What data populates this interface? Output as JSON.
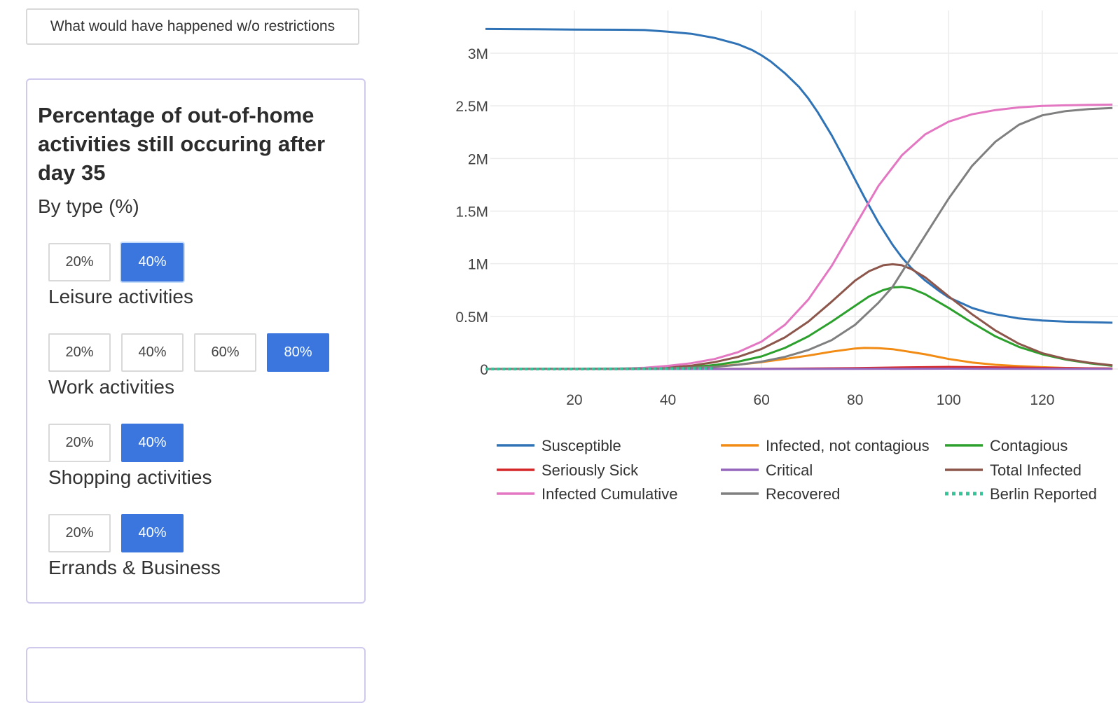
{
  "top_button": {
    "label": "What would have happened w/o restrictions"
  },
  "panel": {
    "title": "Percentage of out-of-home activities still occuring after day 35",
    "subtitle": "By type (%)",
    "groups": [
      {
        "label": "Leisure activities",
        "options": [
          "20%",
          "40%"
        ],
        "selected": "40%"
      },
      {
        "label": "Work activities",
        "options": [
          "20%",
          "40%",
          "60%",
          "80%"
        ],
        "selected": "80%"
      },
      {
        "label": "Shopping activities",
        "options": [
          "20%",
          "40%"
        ],
        "selected": "40%"
      },
      {
        "label": "Errands & Business",
        "options": [
          "20%",
          "40%"
        ],
        "selected": "40%"
      }
    ]
  },
  "chart_data": {
    "type": "line",
    "title": "",
    "xlabel": "",
    "ylabel": "",
    "xlim": [
      1,
      135
    ],
    "ylim": [
      0,
      3300000
    ],
    "x_ticks": [
      20,
      40,
      60,
      80,
      100,
      120
    ],
    "x_tick_labels": [
      "20",
      "40",
      "60",
      "80",
      "100",
      "120"
    ],
    "y_ticks": [
      0,
      500000,
      1000000,
      1500000,
      2000000,
      2500000,
      3000000
    ],
    "y_tick_labels": [
      "0",
      "0.5M",
      "1M",
      "1.5M",
      "2M",
      "2.5M",
      "3M"
    ],
    "grid": true,
    "legend_position": "bottom",
    "series": [
      {
        "name": "Susceptible",
        "color": "#2f73b6",
        "dash": "solid",
        "x": [
          1,
          10,
          20,
          30,
          35,
          40,
          45,
          50,
          55,
          58,
          60,
          62,
          65,
          68,
          70,
          72,
          75,
          78,
          80,
          82,
          85,
          88,
          90,
          92,
          95,
          98,
          100,
          103,
          105,
          108,
          110,
          115,
          120,
          125,
          130,
          135
        ],
        "y": [
          3230000,
          3228000,
          3225000,
          3223000,
          3220000,
          3205000,
          3185000,
          3145000,
          3085000,
          3030000,
          2980000,
          2920000,
          2810000,
          2680000,
          2570000,
          2440000,
          2220000,
          1970000,
          1800000,
          1630000,
          1390000,
          1180000,
          1060000,
          960000,
          840000,
          740000,
          680000,
          620000,
          580000,
          540000,
          520000,
          480000,
          460000,
          450000,
          445000,
          440000
        ]
      },
      {
        "name": "Infected, not contagious",
        "color": "#f28b13",
        "dash": "solid",
        "x": [
          1,
          30,
          40,
          45,
          50,
          55,
          60,
          65,
          70,
          75,
          80,
          82,
          85,
          88,
          90,
          95,
          100,
          105,
          110,
          115,
          120,
          125,
          130,
          135
        ],
        "y": [
          0,
          1000,
          6000,
          12000,
          25000,
          42000,
          65000,
          95000,
          128000,
          165000,
          195000,
          200000,
          198000,
          188000,
          175000,
          140000,
          95000,
          62000,
          40000,
          27000,
          17000,
          10000,
          6000,
          3000
        ]
      },
      {
        "name": "Contagious",
        "color": "#2ca02c",
        "dash": "solid",
        "x": [
          1,
          30,
          40,
          45,
          50,
          55,
          60,
          65,
          70,
          75,
          80,
          83,
          86,
          88,
          90,
          92,
          95,
          100,
          105,
          110,
          115,
          120,
          125,
          130,
          135
        ],
        "y": [
          0,
          1000,
          8000,
          18000,
          38000,
          70000,
          120000,
          200000,
          310000,
          450000,
          600000,
          690000,
          750000,
          775000,
          780000,
          765000,
          710000,
          580000,
          440000,
          310000,
          210000,
          140000,
          90000,
          55000,
          30000
        ]
      },
      {
        "name": "Seriously Sick",
        "color": "#d62728",
        "dash": "solid",
        "x": [
          1,
          40,
          60,
          80,
          90,
          100,
          110,
          120,
          135
        ],
        "y": [
          0,
          0,
          1000,
          8000,
          15000,
          20000,
          16000,
          10000,
          5000
        ]
      },
      {
        "name": "Critical",
        "color": "#9467bd",
        "dash": "solid",
        "x": [
          1,
          40,
          80,
          100,
          120,
          135
        ],
        "y": [
          0,
          0,
          1000,
          3000,
          2000,
          1000
        ]
      },
      {
        "name": "Total Infected",
        "color": "#8c564b",
        "dash": "solid",
        "x": [
          1,
          30,
          40,
          45,
          50,
          55,
          60,
          65,
          70,
          75,
          80,
          83,
          86,
          88,
          90,
          92,
          95,
          100,
          105,
          110,
          115,
          120,
          125,
          130,
          135
        ],
        "y": [
          0,
          2000,
          15000,
          32000,
          65000,
          115000,
          190000,
          300000,
          450000,
          640000,
          840000,
          930000,
          985000,
          995000,
          985000,
          950000,
          870000,
          690000,
          520000,
          365000,
          240000,
          150000,
          95000,
          60000,
          35000
        ]
      },
      {
        "name": "Infected Cumulative",
        "color": "#e377c2",
        "dash": "solid",
        "x": [
          1,
          30,
          35,
          40,
          45,
          50,
          55,
          60,
          65,
          70,
          75,
          80,
          85,
          90,
          95,
          100,
          105,
          110,
          115,
          120,
          125,
          130,
          135
        ],
        "y": [
          0,
          3000,
          12000,
          30000,
          55000,
          95000,
          160000,
          260000,
          420000,
          660000,
          980000,
          1360000,
          1740000,
          2030000,
          2230000,
          2350000,
          2420000,
          2460000,
          2485000,
          2500000,
          2505000,
          2510000,
          2512000
        ]
      },
      {
        "name": "Recovered",
        "color": "#7f7f7f",
        "dash": "solid",
        "x": [
          1,
          40,
          50,
          55,
          60,
          65,
          70,
          75,
          80,
          85,
          88,
          90,
          95,
          100,
          105,
          110,
          115,
          120,
          125,
          130,
          135
        ],
        "y": [
          0,
          5000,
          20000,
          40000,
          70000,
          115000,
          180000,
          275000,
          420000,
          630000,
          780000,
          920000,
          1270000,
          1620000,
          1930000,
          2160000,
          2320000,
          2410000,
          2450000,
          2470000,
          2480000
        ]
      },
      {
        "name": "Berlin Reported",
        "color": "#33c49a",
        "dash": "dotted",
        "x": [
          1,
          10,
          20,
          30,
          40,
          50
        ],
        "y": [
          0,
          0,
          0,
          1000,
          3000,
          6000
        ]
      }
    ]
  }
}
